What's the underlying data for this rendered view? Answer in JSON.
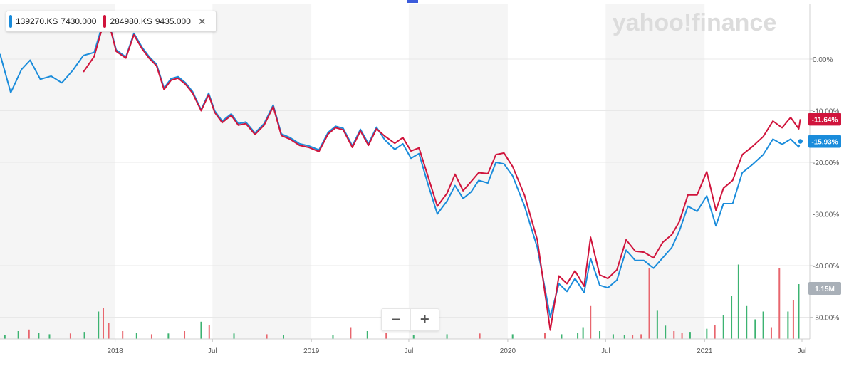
{
  "watermark": "yahoo!finance",
  "legend": {
    "items": [
      {
        "symbol": "139270.KS",
        "value": "7430.000",
        "color": "#1a8cdb"
      },
      {
        "symbol": "284980.KS",
        "value": "9435.000",
        "color": "#d0143c"
      }
    ],
    "close_icon": "close-icon"
  },
  "zoom": {
    "minus": "−",
    "plus": "+"
  },
  "badges": [
    {
      "text": "-11.64%",
      "color": "#d0143c"
    },
    {
      "text": "-15.93%",
      "color": "#1a8cdb"
    },
    {
      "text": "1.15M",
      "color": "#a9b0b8"
    }
  ],
  "colors": {
    "series_a": "#1a8cdb",
    "series_b": "#d0143c",
    "volume_up": "#3cb371",
    "volume_down": "#e8666e",
    "band": "#f5f5f5"
  },
  "chart_data": {
    "type": "line",
    "xlabel": "",
    "ylabel": "",
    "x_range": [
      "2017-06-01",
      "2021-07-01"
    ],
    "ylim": [
      -54,
      10
    ],
    "grid": true,
    "y_axis_side": "right",
    "y_ticks": [
      {
        "value": 0,
        "label": "0.00%"
      },
      {
        "value": -10,
        "label": "-10.00%"
      },
      {
        "value": -20,
        "label": "-20.00%"
      },
      {
        "value": -30,
        "label": "-30.00%"
      },
      {
        "value": -40,
        "label": "-40.00%"
      },
      {
        "value": -50,
        "label": "-50.00%"
      }
    ],
    "x_ticks": [
      {
        "date": "2018-01-01",
        "label": "2018"
      },
      {
        "date": "2018-07-01",
        "label": "Jul"
      },
      {
        "date": "2019-01-01",
        "label": "2019"
      },
      {
        "date": "2019-07-01",
        "label": "Jul"
      },
      {
        "date": "2020-01-01",
        "label": "2020"
      },
      {
        "date": "2020-07-01",
        "label": "Jul"
      },
      {
        "date": "2021-01-01",
        "label": "2021"
      },
      {
        "date": "2021-07-01",
        "label": "Jul"
      }
    ],
    "series": [
      {
        "name": "139270.KS",
        "points": [
          [
            "2017-06-01",
            1.0
          ],
          [
            "2017-06-21",
            -6.5
          ],
          [
            "2017-07-11",
            -2.0
          ],
          [
            "2017-07-27",
            -0.2
          ],
          [
            "2017-08-15",
            -3.9
          ],
          [
            "2017-09-04",
            -3.3
          ],
          [
            "2017-09-24",
            -4.6
          ],
          [
            "2017-10-14",
            -2.2
          ],
          [
            "2017-11-03",
            0.7
          ],
          [
            "2017-11-23",
            1.3
          ],
          [
            "2017-12-08",
            6.5
          ],
          [
            "2017-12-18",
            8.2
          ],
          [
            "2018-01-03",
            1.8
          ],
          [
            "2018-01-21",
            0.4
          ],
          [
            "2018-02-05",
            5.0
          ],
          [
            "2018-02-20",
            2.3
          ],
          [
            "2018-03-05",
            0.5
          ],
          [
            "2018-03-19",
            -1.0
          ],
          [
            "2018-04-02",
            -5.6
          ],
          [
            "2018-04-15",
            -3.8
          ],
          [
            "2018-04-28",
            -3.4
          ],
          [
            "2018-05-12",
            -4.6
          ],
          [
            "2018-05-25",
            -6.3
          ],
          [
            "2018-06-10",
            -9.8
          ],
          [
            "2018-06-24",
            -6.6
          ],
          [
            "2018-07-05",
            -10.0
          ],
          [
            "2018-07-19",
            -12.0
          ],
          [
            "2018-08-05",
            -10.6
          ],
          [
            "2018-08-18",
            -12.5
          ],
          [
            "2018-09-01",
            -12.2
          ],
          [
            "2018-09-18",
            -14.3
          ],
          [
            "2018-10-05",
            -12.5
          ],
          [
            "2018-10-22",
            -8.9
          ],
          [
            "2018-11-06",
            -14.5
          ],
          [
            "2018-11-22",
            -15.2
          ],
          [
            "2018-12-10",
            -16.4
          ],
          [
            "2018-12-27",
            -16.8
          ],
          [
            "2019-01-15",
            -17.6
          ],
          [
            "2019-02-01",
            -14.2
          ],
          [
            "2019-02-15",
            -13.0
          ],
          [
            "2019-03-01",
            -13.4
          ],
          [
            "2019-03-18",
            -16.8
          ],
          [
            "2019-04-02",
            -13.6
          ],
          [
            "2019-04-17",
            -16.4
          ],
          [
            "2019-05-02",
            -13.2
          ],
          [
            "2019-05-17",
            -15.6
          ],
          [
            "2019-06-05",
            -17.5
          ],
          [
            "2019-06-20",
            -16.4
          ],
          [
            "2019-07-05",
            -19.2
          ],
          [
            "2019-07-20",
            -18.3
          ],
          [
            "2019-08-05",
            -24.0
          ],
          [
            "2019-08-23",
            -30.0
          ],
          [
            "2019-09-10",
            -27.5
          ],
          [
            "2019-09-25",
            -24.5
          ],
          [
            "2019-10-10",
            -27.0
          ],
          [
            "2019-10-25",
            -25.7
          ],
          [
            "2019-11-08",
            -23.5
          ],
          [
            "2019-11-25",
            -24.0
          ],
          [
            "2019-12-10",
            -20.0
          ],
          [
            "2019-12-25",
            -20.3
          ],
          [
            "2020-01-10",
            -22.6
          ],
          [
            "2020-02-01",
            -28.4
          ],
          [
            "2020-02-25",
            -36.5
          ],
          [
            "2020-03-20",
            -50.0
          ],
          [
            "2020-04-05",
            -43.5
          ],
          [
            "2020-04-20",
            -45.0
          ],
          [
            "2020-05-05",
            -42.5
          ],
          [
            "2020-05-22",
            -45.2
          ],
          [
            "2020-06-03",
            -38.6
          ],
          [
            "2020-06-20",
            -43.8
          ],
          [
            "2020-07-05",
            -44.3
          ],
          [
            "2020-07-22",
            -42.8
          ],
          [
            "2020-08-08",
            -37.0
          ],
          [
            "2020-08-25",
            -39.0
          ],
          [
            "2020-09-10",
            -39.0
          ],
          [
            "2020-09-28",
            -40.5
          ],
          [
            "2020-10-15",
            -38.5
          ],
          [
            "2020-11-01",
            -36.5
          ],
          [
            "2020-11-15",
            -33.3
          ],
          [
            "2020-12-01",
            -28.5
          ],
          [
            "2020-12-18",
            -29.5
          ],
          [
            "2021-01-05",
            -26.5
          ],
          [
            "2021-01-22",
            -32.3
          ],
          [
            "2021-02-05",
            -28.0
          ],
          [
            "2021-02-22",
            -28.0
          ],
          [
            "2021-03-12",
            -22.0
          ],
          [
            "2021-03-30",
            -20.5
          ],
          [
            "2021-04-20",
            -18.5
          ],
          [
            "2021-05-08",
            -15.5
          ],
          [
            "2021-05-25",
            -16.5
          ],
          [
            "2021-06-10",
            -15.5
          ],
          [
            "2021-06-25",
            -17.0
          ],
          [
            "2021-06-28",
            -15.93
          ]
        ]
      },
      {
        "name": "284980.KS",
        "points": [
          [
            "2017-11-03",
            -2.5
          ],
          [
            "2017-11-23",
            0.5
          ],
          [
            "2017-12-08",
            6.0
          ],
          [
            "2017-12-18",
            8.0
          ],
          [
            "2018-01-03",
            1.5
          ],
          [
            "2018-01-21",
            0.2
          ],
          [
            "2018-02-05",
            4.7
          ],
          [
            "2018-02-20",
            2.0
          ],
          [
            "2018-03-05",
            0.2
          ],
          [
            "2018-03-19",
            -1.3
          ],
          [
            "2018-04-02",
            -5.9
          ],
          [
            "2018-04-15",
            -4.1
          ],
          [
            "2018-04-28",
            -3.7
          ],
          [
            "2018-05-12",
            -4.9
          ],
          [
            "2018-05-25",
            -6.6
          ],
          [
            "2018-06-10",
            -10.0
          ],
          [
            "2018-06-24",
            -6.9
          ],
          [
            "2018-07-05",
            -10.3
          ],
          [
            "2018-07-19",
            -12.3
          ],
          [
            "2018-08-05",
            -10.9
          ],
          [
            "2018-08-18",
            -12.8
          ],
          [
            "2018-09-01",
            -12.5
          ],
          [
            "2018-09-18",
            -14.6
          ],
          [
            "2018-10-05",
            -12.8
          ],
          [
            "2018-10-22",
            -9.2
          ],
          [
            "2018-11-06",
            -14.8
          ],
          [
            "2018-11-22",
            -15.5
          ],
          [
            "2018-12-10",
            -16.7
          ],
          [
            "2018-12-27",
            -17.1
          ],
          [
            "2019-01-15",
            -17.9
          ],
          [
            "2019-02-01",
            -14.5
          ],
          [
            "2019-02-15",
            -13.3
          ],
          [
            "2019-03-01",
            -13.7
          ],
          [
            "2019-03-18",
            -17.1
          ],
          [
            "2019-04-02",
            -13.9
          ],
          [
            "2019-04-17",
            -16.7
          ],
          [
            "2019-05-02",
            -13.5
          ],
          [
            "2019-05-17",
            -14.9
          ],
          [
            "2019-06-05",
            -16.3
          ],
          [
            "2019-06-20",
            -15.2
          ],
          [
            "2019-07-05",
            -17.8
          ],
          [
            "2019-07-20",
            -17.2
          ],
          [
            "2019-08-05",
            -22.5
          ],
          [
            "2019-08-23",
            -28.5
          ],
          [
            "2019-09-10",
            -26.0
          ],
          [
            "2019-09-25",
            -22.3
          ],
          [
            "2019-10-10",
            -25.5
          ],
          [
            "2019-10-25",
            -23.7
          ],
          [
            "2019-11-08",
            -22.0
          ],
          [
            "2019-11-25",
            -22.2
          ],
          [
            "2019-12-10",
            -18.5
          ],
          [
            "2019-12-25",
            -18.2
          ],
          [
            "2020-01-10",
            -20.8
          ],
          [
            "2020-02-01",
            -26.3
          ],
          [
            "2020-02-25",
            -35.0
          ],
          [
            "2020-03-20",
            -52.5
          ],
          [
            "2020-04-05",
            -42.0
          ],
          [
            "2020-04-20",
            -43.5
          ],
          [
            "2020-05-05",
            -41.0
          ],
          [
            "2020-05-22",
            -44.0
          ],
          [
            "2020-06-03",
            -34.5
          ],
          [
            "2020-06-20",
            -41.8
          ],
          [
            "2020-07-05",
            -42.5
          ],
          [
            "2020-07-22",
            -40.8
          ],
          [
            "2020-08-08",
            -35.0
          ],
          [
            "2020-08-25",
            -37.2
          ],
          [
            "2020-09-10",
            -37.4
          ],
          [
            "2020-09-28",
            -38.5
          ],
          [
            "2020-10-15",
            -35.5
          ],
          [
            "2020-11-01",
            -34.0
          ],
          [
            "2020-11-15",
            -31.5
          ],
          [
            "2020-12-01",
            -26.3
          ],
          [
            "2020-12-18",
            -26.3
          ],
          [
            "2021-01-05",
            -21.8
          ],
          [
            "2021-01-22",
            -29.3
          ],
          [
            "2021-02-05",
            -25.0
          ],
          [
            "2021-02-22",
            -23.5
          ],
          [
            "2021-03-12",
            -18.5
          ],
          [
            "2021-03-30",
            -17.0
          ],
          [
            "2021-04-20",
            -15.0
          ],
          [
            "2021-05-08",
            -12.0
          ],
          [
            "2021-05-25",
            -13.3
          ],
          [
            "2021-06-10",
            -11.3
          ],
          [
            "2021-06-25",
            -13.5
          ],
          [
            "2021-06-28",
            -11.64
          ]
        ]
      }
    ],
    "volume": [
      [
        "2017-06-10",
        0.05,
        "up"
      ],
      [
        "2017-07-05",
        0.1,
        "up"
      ],
      [
        "2017-07-25",
        0.12,
        "down"
      ],
      [
        "2017-08-12",
        0.08,
        "up"
      ],
      [
        "2017-09-01",
        0.06,
        "up"
      ],
      [
        "2017-10-10",
        0.07,
        "down"
      ],
      [
        "2017-11-05",
        0.09,
        "up"
      ],
      [
        "2017-12-01",
        0.35,
        "up"
      ],
      [
        "2017-12-10",
        0.4,
        "down"
      ],
      [
        "2017-12-20",
        0.2,
        "down"
      ],
      [
        "2018-01-15",
        0.1,
        "down"
      ],
      [
        "2018-02-10",
        0.08,
        "up"
      ],
      [
        "2018-03-10",
        0.06,
        "down"
      ],
      [
        "2018-04-10",
        0.07,
        "up"
      ],
      [
        "2018-05-10",
        0.1,
        "down"
      ],
      [
        "2018-06-10",
        0.22,
        "up"
      ],
      [
        "2018-06-25",
        0.18,
        "down"
      ],
      [
        "2018-08-10",
        0.07,
        "up"
      ],
      [
        "2018-10-10",
        0.06,
        "down"
      ],
      [
        "2018-11-10",
        0.05,
        "up"
      ],
      [
        "2019-02-10",
        0.05,
        "up"
      ],
      [
        "2019-03-15",
        0.15,
        "down"
      ],
      [
        "2019-04-15",
        0.1,
        "up"
      ],
      [
        "2019-05-20",
        0.08,
        "down"
      ],
      [
        "2019-07-10",
        0.05,
        "up"
      ],
      [
        "2019-09-10",
        0.06,
        "up"
      ],
      [
        "2019-11-10",
        0.07,
        "down"
      ],
      [
        "2020-01-10",
        0.06,
        "up"
      ],
      [
        "2020-03-10",
        0.08,
        "down"
      ],
      [
        "2020-04-10",
        0.06,
        "up"
      ],
      [
        "2020-05-10",
        0.08,
        "up"
      ],
      [
        "2020-05-20",
        0.15,
        "up"
      ],
      [
        "2020-06-03",
        0.42,
        "down"
      ],
      [
        "2020-06-20",
        0.1,
        "up"
      ],
      [
        "2020-07-15",
        0.06,
        "up"
      ],
      [
        "2020-08-05",
        0.05,
        "up"
      ],
      [
        "2020-08-20",
        0.05,
        "down"
      ],
      [
        "2020-09-05",
        0.06,
        "down"
      ],
      [
        "2020-09-20",
        0.9,
        "down"
      ],
      [
        "2020-10-05",
        0.36,
        "up"
      ],
      [
        "2020-10-20",
        0.17,
        "up"
      ],
      [
        "2020-11-05",
        0.1,
        "down"
      ],
      [
        "2020-11-20",
        0.08,
        "down"
      ],
      [
        "2020-12-05",
        0.09,
        "up"
      ],
      [
        "2021-01-05",
        0.13,
        "up"
      ],
      [
        "2021-01-20",
        0.18,
        "down"
      ],
      [
        "2021-02-05",
        0.3,
        "up"
      ],
      [
        "2021-02-20",
        0.55,
        "up"
      ],
      [
        "2021-03-05",
        0.95,
        "up"
      ],
      [
        "2021-03-20",
        0.42,
        "up"
      ],
      [
        "2021-04-05",
        0.25,
        "up"
      ],
      [
        "2021-04-20",
        0.35,
        "up"
      ],
      [
        "2021-05-05",
        0.15,
        "down"
      ],
      [
        "2021-05-20",
        0.9,
        "down"
      ],
      [
        "2021-06-05",
        0.35,
        "up"
      ],
      [
        "2021-06-15",
        0.5,
        "down"
      ],
      [
        "2021-06-25",
        0.7,
        "up"
      ]
    ]
  }
}
